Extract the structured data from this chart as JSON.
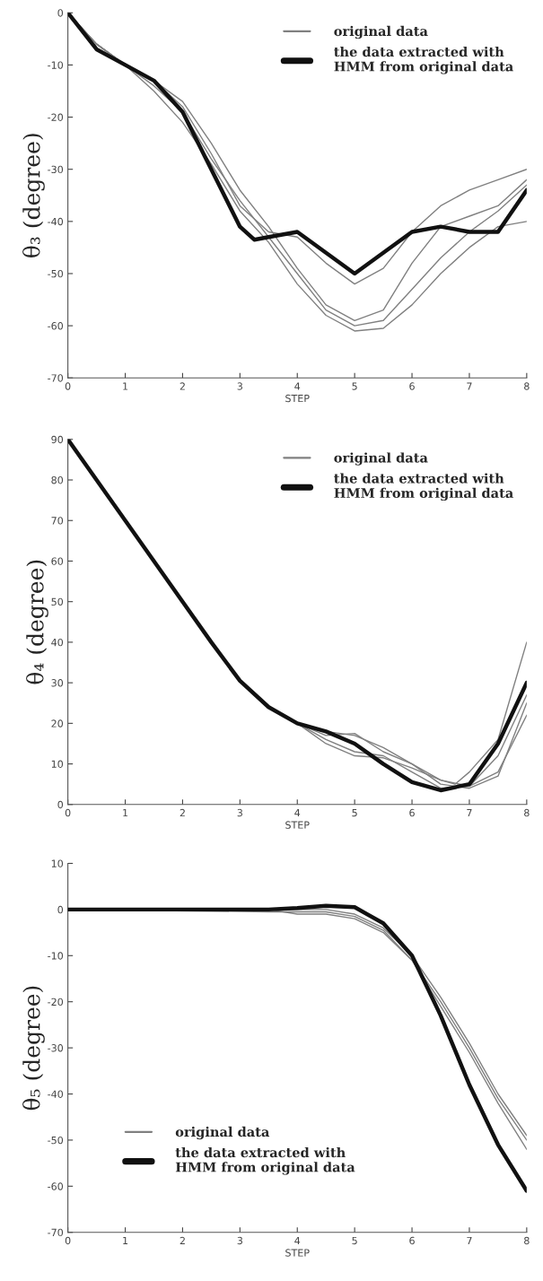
{
  "chart_data": [
    {
      "type": "line",
      "xlabel": "STEP",
      "ylabel": "θ₃ (degree)",
      "xlim": [
        0,
        8
      ],
      "ylim": [
        -70,
        0
      ],
      "xticks": [
        0,
        1,
        2,
        3,
        4,
        5,
        6,
        7,
        8
      ],
      "yticks": [
        -70,
        -60,
        -50,
        -40,
        -30,
        -20,
        -10,
        0
      ],
      "grid": false,
      "legend": "top right",
      "series": [
        {
          "name": "original data",
          "color": "#808080",
          "x": [
            0,
            0.5,
            1,
            1.5,
            2,
            2.5,
            3,
            3.5,
            4,
            4.5,
            5,
            5.5,
            6,
            6.5,
            7,
            7.5,
            8
          ],
          "values": [
            0,
            -6,
            -10,
            -13,
            -18,
            -27,
            -37,
            -42,
            -43,
            -48,
            -52,
            -49,
            -42,
            -37,
            -34,
            -32,
            -30
          ]
        },
        {
          "color": "#808080",
          "x": [
            0,
            0.5,
            1,
            1.5,
            2,
            2.5,
            3,
            3.5,
            4,
            4.5,
            5,
            5.5,
            6,
            6.5,
            7,
            7.5,
            8
          ],
          "values": [
            0,
            -6,
            -10,
            -13,
            -17,
            -25,
            -34,
            -41,
            -49,
            -56,
            -59,
            -57,
            -48,
            -41,
            -39,
            -37,
            -32
          ]
        },
        {
          "color": "#808080",
          "x": [
            0,
            0.5,
            1,
            1.5,
            2,
            2.5,
            3,
            3.5,
            4,
            4.5,
            5,
            5.5,
            6,
            6.5,
            7,
            7.5,
            8
          ],
          "values": [
            0,
            -6,
            -10,
            -14,
            -19,
            -28,
            -36,
            -43,
            -50,
            -57,
            -60,
            -59,
            -53,
            -47,
            -42,
            -38,
            -33
          ]
        },
        {
          "color": "#808080",
          "x": [
            0,
            0.5,
            1,
            1.5,
            2,
            2.5,
            3,
            3.5,
            4,
            4.5,
            5,
            5.5,
            6,
            6.5,
            7,
            7.5,
            8
          ],
          "values": [
            0,
            -6,
            -10,
            -15,
            -21,
            -29,
            -38,
            -44,
            -52,
            -58,
            -61,
            -60.5,
            -56,
            -50,
            -45,
            -41,
            -40
          ]
        },
        {
          "name": "the data extracted with\nHMM from original data",
          "color": "#111111",
          "x": [
            0,
            0.5,
            1,
            1.5,
            2,
            2.5,
            3,
            3.25,
            3.5,
            4,
            4.5,
            5,
            5.5,
            6,
            6.5,
            7,
            7.5,
            8
          ],
          "values": [
            0,
            -7,
            -10,
            -13,
            -19,
            -30,
            -41,
            -43.5,
            -43,
            -42,
            -46,
            -50,
            -46,
            -42,
            -41,
            -42,
            -42,
            -34
          ]
        }
      ]
    },
    {
      "type": "line",
      "xlabel": "STEP",
      "ylabel": "θ₄ (degree)",
      "xlim": [
        0,
        8
      ],
      "ylim": [
        0,
        90
      ],
      "xticks": [
        0,
        1,
        2,
        3,
        4,
        5,
        6,
        7,
        8
      ],
      "yticks": [
        0,
        10,
        20,
        30,
        40,
        50,
        60,
        70,
        80,
        90
      ],
      "grid": false,
      "legend": "top right",
      "series": [
        {
          "name": "original data",
          "color": "#808080",
          "x": [
            4,
            4.5,
            5,
            5.5,
            6,
            6.5,
            7,
            7.5,
            8
          ],
          "values": [
            20,
            15,
            12,
            11.5,
            9,
            6,
            4.5,
            8,
            22
          ]
        },
        {
          "color": "#808080",
          "x": [
            4,
            4.5,
            5,
            5.5,
            6,
            6.5,
            6.75,
            7,
            7.5,
            8
          ],
          "values": [
            20,
            18,
            17,
            14,
            10,
            6,
            5,
            8,
            16,
            40
          ]
        },
        {
          "color": "#808080",
          "x": [
            4,
            4.5,
            5,
            5.5,
            6,
            6.5,
            7,
            7.5,
            8
          ],
          "values": [
            20,
            17,
            17.5,
            13,
            10,
            5,
            4,
            7,
            25
          ]
        },
        {
          "color": "#808080",
          "x": [
            4,
            4.5,
            5,
            5.5,
            6,
            6.5,
            7,
            7.5,
            8
          ],
          "values": [
            20,
            16,
            13,
            12,
            8,
            4,
            4.5,
            12,
            27
          ]
        },
        {
          "name": "the data extracted with\nHMM from original data",
          "color": "#111111",
          "x": [
            0,
            0.5,
            1,
            1.5,
            2,
            2.5,
            3,
            3.5,
            4,
            4.5,
            5,
            5.5,
            6,
            6.5,
            7,
            7.5,
            8
          ],
          "values": [
            90,
            80,
            70,
            60,
            50,
            40,
            30.5,
            24,
            20,
            18,
            15,
            10,
            5.5,
            3.5,
            5,
            15,
            30
          ]
        }
      ]
    },
    {
      "type": "line",
      "xlabel": "STEP",
      "ylabel": "θ₅ (degree)",
      "xlim": [
        0,
        8
      ],
      "ylim": [
        -70,
        10
      ],
      "xticks": [
        0,
        1,
        2,
        3,
        4,
        5,
        6,
        7,
        8
      ],
      "yticks": [
        -70,
        -60,
        -50,
        -40,
        -30,
        -20,
        -10,
        0,
        10
      ],
      "grid": false,
      "legend": "bottom left",
      "series": [
        {
          "name": "original data",
          "color": "#808080",
          "x": [
            0,
            3.5,
            4,
            4.5,
            5,
            5.5,
            6,
            6.5,
            7,
            7.5,
            8
          ],
          "values": [
            0,
            0,
            -1,
            -1,
            -2,
            -5,
            -11,
            -20,
            -30,
            -41,
            -50
          ]
        },
        {
          "color": "#808080",
          "x": [
            0,
            3.5,
            4,
            4.5,
            5,
            5.5,
            6,
            6.5,
            7,
            7.5,
            8
          ],
          "values": [
            0,
            -0.5,
            -0.5,
            -0.5,
            -1.5,
            -4.5,
            -11,
            -21,
            -31,
            -42,
            -52
          ]
        },
        {
          "color": "#808080",
          "x": [
            0,
            3.5,
            4,
            4.5,
            5,
            5.5,
            6,
            6.5,
            7,
            7.5,
            8
          ],
          "values": [
            0,
            0,
            0,
            0,
            -1,
            -4,
            -10,
            -19,
            -29,
            -40,
            -49
          ]
        },
        {
          "name": "the data extracted with\nHMM from original data",
          "color": "#111111",
          "x": [
            0,
            3.5,
            4,
            4.5,
            5,
            5.5,
            6,
            6.5,
            7,
            7.5,
            8
          ],
          "values": [
            0,
            0,
            0.3,
            0.8,
            0.5,
            -3,
            -10,
            -23,
            -38,
            -51,
            -61
          ]
        }
      ]
    }
  ]
}
